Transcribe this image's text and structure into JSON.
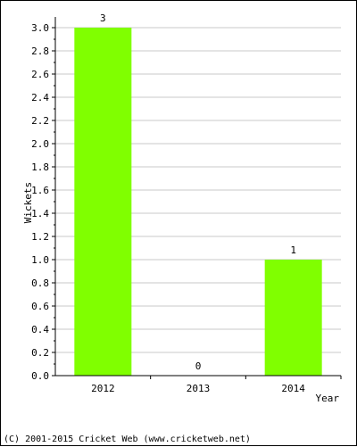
{
  "chart_data": {
    "type": "bar",
    "categories": [
      "2012",
      "2013",
      "2014"
    ],
    "values": [
      3,
      0,
      1
    ],
    "data_labels": [
      "3",
      "0",
      "1"
    ],
    "xlabel": "Year",
    "ylabel": "Wickets",
    "ylim": [
      0,
      3.0
    ],
    "y_ticks": [
      "0.0",
      "0.2",
      "0.4",
      "0.6",
      "0.8",
      "1.0",
      "1.2",
      "1.4",
      "1.6",
      "1.8",
      "2.0",
      "2.2",
      "2.4",
      "2.6",
      "2.8",
      "3.0"
    ],
    "grid": true,
    "bar_color": "#80ff00",
    "grid_color": "#c8c8c8"
  },
  "footer": {
    "copyright": "(C) 2001-2015 Cricket Web (www.cricketweb.net)"
  }
}
